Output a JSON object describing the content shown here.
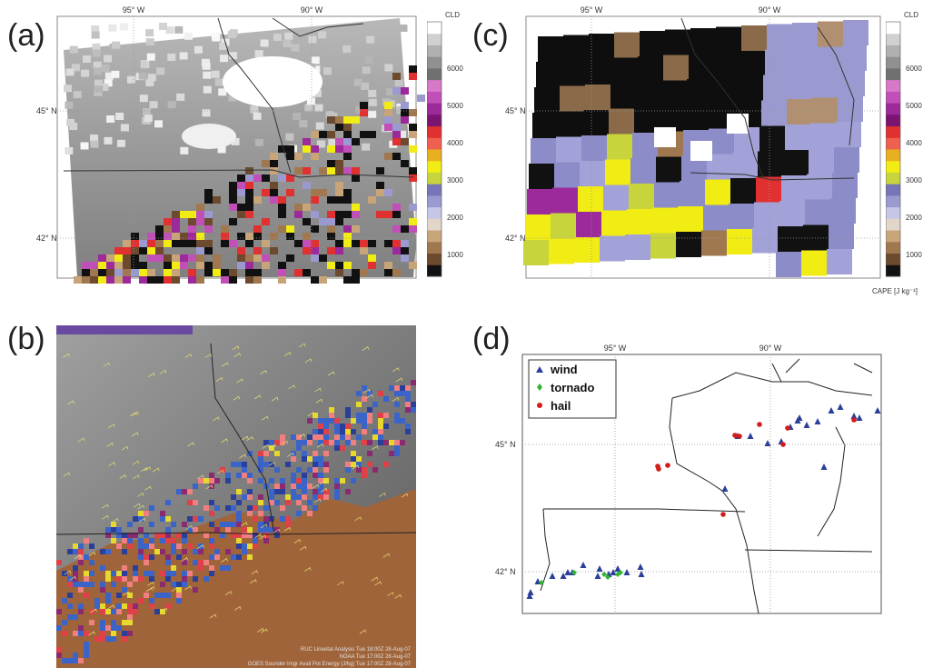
{
  "panels": {
    "a": {
      "label": "(a)",
      "lon_labels": [
        "95° W",
        "90° W"
      ],
      "lat_labels": [
        "45° N",
        "42° N"
      ]
    },
    "b": {
      "label": "(b)",
      "footer_lines": [
        "RUC Lineetal Analysis  Tue 18:00Z 28-Aug-07",
        "NOAA  Tue 17:00Z 28-Aug-07",
        "GOES Sounder Imgr Avail Pot Energy (J/kg)  Tue 17:00Z 28-Aug-07"
      ]
    },
    "c": {
      "label": "(c)",
      "lon_labels": [
        "95° W",
        "90° W"
      ],
      "lat_labels": [
        "45° N",
        "42° N"
      ],
      "unit_label": "CAPE [J kg⁻¹]"
    },
    "d": {
      "label": "(d)",
      "lon_labels": [
        "95° W",
        "90° W"
      ],
      "lat_labels": [
        "45° N",
        "42° N"
      ],
      "legend": [
        {
          "name": "wind",
          "marker": "triangle",
          "color": "#2a3f9a"
        },
        {
          "name": "tornado",
          "marker": "diamond",
          "color": "#2fb52f"
        },
        {
          "name": "hail",
          "marker": "circle",
          "color": "#d21c1c"
        }
      ]
    }
  },
  "colorbar": {
    "top_label": "CLD",
    "ticks": [
      "6000",
      "5000",
      "4000",
      "3000",
      "2000",
      "1000"
    ],
    "colors": [
      "#111111",
      "#6b4a2e",
      "#a07850",
      "#c8a578",
      "#e2d5c9",
      "#c6c6e6",
      "#9a9ad0",
      "#7575b8",
      "#c8d43c",
      "#f0ec14",
      "#e8b020",
      "#f06050",
      "#e03030",
      "#7a1470",
      "#9c2a9a",
      "#c050b8",
      "#d878c8",
      "#707070",
      "#909090",
      "#b0b0b0",
      "#d0d0d0",
      "#ffffff"
    ]
  }
}
